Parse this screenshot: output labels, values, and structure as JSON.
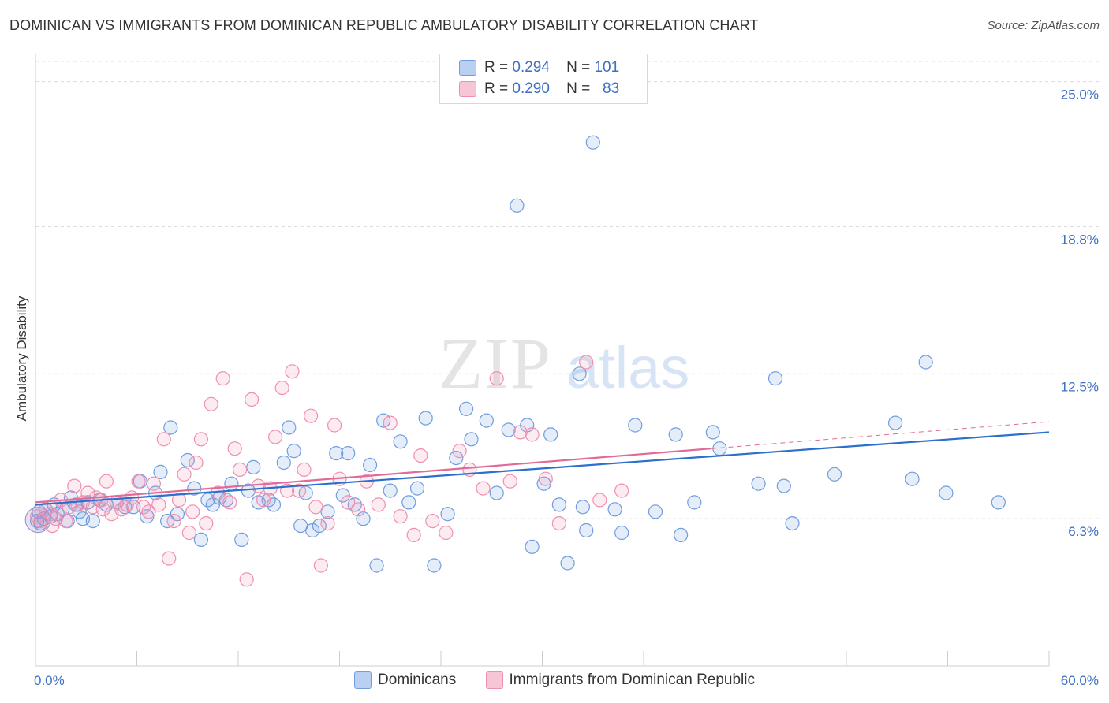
{
  "title": "DOMINICAN VS IMMIGRANTS FROM DOMINICAN REPUBLIC AMBULATORY DISABILITY CORRELATION CHART",
  "source": "Source: ZipAtlas.com",
  "watermark": {
    "part1": "ZIP",
    "part2": "atlas"
  },
  "legend": {
    "rows": [
      {
        "r_label": "R =",
        "r_value": "0.294",
        "n_label": "N =",
        "n_value": "101"
      },
      {
        "r_label": "R =",
        "r_value": "0.290",
        "n_label": "N =",
        "n_value": "83"
      }
    ]
  },
  "chart_data": {
    "type": "scatter",
    "xlabel": "",
    "ylabel": "Ambulatory Disability",
    "xlim": [
      0,
      60
    ],
    "ylim": [
      0,
      26.2
    ],
    "x_tick_labels": [
      "0.0%",
      "60.0%"
    ],
    "y_tick_labels": [
      "6.3%",
      "12.5%",
      "18.8%",
      "25.0%"
    ],
    "y_ticks": [
      6.3,
      12.5,
      18.8,
      25.0
    ],
    "grid": true,
    "legend_position": "bottom",
    "colors": {
      "blue": "#6f9de0",
      "pink": "#ef8fb0",
      "blue_line": "#2c6fcc",
      "pink_line": "#e06b97",
      "tick_text": "#3d6fc4"
    },
    "series": [
      {
        "name": "Dominicans",
        "color": "#6f9de0",
        "trend": {
          "x": [
            0,
            60
          ],
          "y": [
            6.9,
            10.0
          ]
        },
        "points": [
          [
            0.2,
            6.6
          ],
          [
            0.5,
            6.3
          ],
          [
            0.6,
            6.7
          ],
          [
            0.9,
            6.4
          ],
          [
            1.1,
            6.9
          ],
          [
            1.3,
            6.5
          ],
          [
            1.6,
            6.7
          ],
          [
            1.9,
            6.2
          ],
          [
            2.1,
            7.2
          ],
          [
            2.4,
            6.9
          ],
          [
            2.8,
            6.3
          ],
          [
            3.1,
            7.0
          ],
          [
            3.4,
            6.2
          ],
          [
            3.8,
            7.1
          ],
          [
            4.2,
            6.9
          ],
          [
            4.8,
            7.0
          ],
          [
            5.3,
            6.8
          ],
          [
            5.8,
            6.8
          ],
          [
            6.2,
            7.9
          ],
          [
            6.6,
            6.4
          ],
          [
            7.1,
            7.4
          ],
          [
            7.4,
            8.3
          ],
          [
            7.8,
            6.2
          ],
          [
            8.0,
            10.2
          ],
          [
            8.4,
            6.5
          ],
          [
            9.0,
            8.8
          ],
          [
            9.4,
            7.6
          ],
          [
            9.8,
            5.4
          ],
          [
            10.2,
            7.1
          ],
          [
            10.5,
            6.9
          ],
          [
            10.9,
            7.2
          ],
          [
            11.3,
            7.1
          ],
          [
            11.6,
            7.8
          ],
          [
            12.2,
            5.4
          ],
          [
            12.6,
            7.5
          ],
          [
            12.9,
            8.5
          ],
          [
            13.2,
            7.0
          ],
          [
            13.8,
            7.1
          ],
          [
            14.1,
            6.9
          ],
          [
            14.7,
            8.7
          ],
          [
            15.0,
            10.2
          ],
          [
            15.3,
            9.2
          ],
          [
            15.7,
            6.0
          ],
          [
            16.0,
            7.4
          ],
          [
            16.4,
            5.8
          ],
          [
            16.8,
            6.0
          ],
          [
            17.3,
            6.6
          ],
          [
            17.8,
            9.1
          ],
          [
            18.2,
            7.3
          ],
          [
            18.5,
            9.1
          ],
          [
            18.9,
            6.9
          ],
          [
            19.4,
            6.3
          ],
          [
            19.8,
            8.6
          ],
          [
            20.2,
            4.3
          ],
          [
            20.6,
            10.5
          ],
          [
            21.0,
            7.5
          ],
          [
            21.6,
            9.6
          ],
          [
            22.1,
            7.0
          ],
          [
            22.6,
            7.6
          ],
          [
            23.1,
            10.6
          ],
          [
            23.6,
            4.3
          ],
          [
            24.4,
            6.5
          ],
          [
            24.9,
            8.9
          ],
          [
            25.5,
            11.0
          ],
          [
            25.8,
            9.7
          ],
          [
            26.7,
            10.5
          ],
          [
            27.3,
            7.4
          ],
          [
            28.0,
            10.1
          ],
          [
            28.5,
            19.7
          ],
          [
            29.1,
            10.3
          ],
          [
            29.4,
            5.1
          ],
          [
            30.1,
            7.8
          ],
          [
            30.5,
            9.9
          ],
          [
            31.0,
            6.9
          ],
          [
            31.5,
            4.4
          ],
          [
            32.2,
            12.5
          ],
          [
            32.4,
            6.8
          ],
          [
            32.6,
            5.8
          ],
          [
            33.0,
            22.4
          ],
          [
            34.3,
            6.7
          ],
          [
            34.7,
            5.7
          ],
          [
            35.5,
            10.3
          ],
          [
            36.7,
            6.6
          ],
          [
            37.9,
            9.9
          ],
          [
            38.2,
            5.6
          ],
          [
            39.0,
            7.0
          ],
          [
            40.1,
            10.0
          ],
          [
            40.5,
            9.3
          ],
          [
            42.8,
            7.8
          ],
          [
            43.8,
            12.3
          ],
          [
            44.3,
            7.7
          ],
          [
            44.8,
            6.1
          ],
          [
            47.3,
            8.2
          ],
          [
            50.9,
            10.4
          ],
          [
            51.9,
            8.0
          ],
          [
            52.7,
            13.0
          ],
          [
            53.9,
            7.4
          ],
          [
            57.0,
            7.0
          ],
          [
            0.1,
            6.2
          ],
          [
            0.3,
            6.1
          ],
          [
            2.6,
            6.6
          ]
        ]
      },
      {
        "name": "Immigrants from Dominican Republic",
        "color": "#ef8fb0",
        "trend": {
          "x": [
            0,
            40
          ],
          "y": [
            7.0,
            9.3
          ]
        },
        "points": [
          [
            0.1,
            6.4
          ],
          [
            0.3,
            6.2
          ],
          [
            0.6,
            6.7
          ],
          [
            0.9,
            6.5
          ],
          [
            1.2,
            6.3
          ],
          [
            1.5,
            7.1
          ],
          [
            1.8,
            6.2
          ],
          [
            2.0,
            6.8
          ],
          [
            2.3,
            7.7
          ],
          [
            2.5,
            6.9
          ],
          [
            2.8,
            7.0
          ],
          [
            3.1,
            7.4
          ],
          [
            3.4,
            6.8
          ],
          [
            3.6,
            7.2
          ],
          [
            3.9,
            7.1
          ],
          [
            4.2,
            7.9
          ],
          [
            4.5,
            6.5
          ],
          [
            4.8,
            7.0
          ],
          [
            5.1,
            6.7
          ],
          [
            5.4,
            6.9
          ],
          [
            5.7,
            7.2
          ],
          [
            6.1,
            7.9
          ],
          [
            6.4,
            6.8
          ],
          [
            6.7,
            6.6
          ],
          [
            7.0,
            7.8
          ],
          [
            7.3,
            6.9
          ],
          [
            7.6,
            9.7
          ],
          [
            7.9,
            4.6
          ],
          [
            8.2,
            6.2
          ],
          [
            8.5,
            7.1
          ],
          [
            8.8,
            8.2
          ],
          [
            9.1,
            5.7
          ],
          [
            9.5,
            8.7
          ],
          [
            9.8,
            9.7
          ],
          [
            10.1,
            6.1
          ],
          [
            10.4,
            11.2
          ],
          [
            10.8,
            7.4
          ],
          [
            11.1,
            12.3
          ],
          [
            11.5,
            7.0
          ],
          [
            11.8,
            9.3
          ],
          [
            12.1,
            8.4
          ],
          [
            12.5,
            3.7
          ],
          [
            12.8,
            11.4
          ],
          [
            13.2,
            7.7
          ],
          [
            13.5,
            7.1
          ],
          [
            13.9,
            7.6
          ],
          [
            14.2,
            9.8
          ],
          [
            14.6,
            11.9
          ],
          [
            14.9,
            7.5
          ],
          [
            15.2,
            12.6
          ],
          [
            15.6,
            7.5
          ],
          [
            15.9,
            8.4
          ],
          [
            16.3,
            10.7
          ],
          [
            16.6,
            6.8
          ],
          [
            16.9,
            4.3
          ],
          [
            17.3,
            6.1
          ],
          [
            17.7,
            10.3
          ],
          [
            18.0,
            8.0
          ],
          [
            18.5,
            7.0
          ],
          [
            19.1,
            6.7
          ],
          [
            19.6,
            7.9
          ],
          [
            20.3,
            6.9
          ],
          [
            21.0,
            10.4
          ],
          [
            21.6,
            6.4
          ],
          [
            22.4,
            5.6
          ],
          [
            22.8,
            9.0
          ],
          [
            23.5,
            6.2
          ],
          [
            24.3,
            5.7
          ],
          [
            25.1,
            9.2
          ],
          [
            25.7,
            8.4
          ],
          [
            26.5,
            7.6
          ],
          [
            27.3,
            12.3
          ],
          [
            28.1,
            7.9
          ],
          [
            28.7,
            10.0
          ],
          [
            29.4,
            9.9
          ],
          [
            30.2,
            8.0
          ],
          [
            31.0,
            6.1
          ],
          [
            32.6,
            13.0
          ],
          [
            33.4,
            7.1
          ],
          [
            34.7,
            7.5
          ],
          [
            1.0,
            6.0
          ],
          [
            4.0,
            6.7
          ],
          [
            9.3,
            6.6
          ]
        ]
      }
    ],
    "bottom_legend": [
      "Dominicans",
      "Immigrants from Dominican Republic"
    ]
  }
}
